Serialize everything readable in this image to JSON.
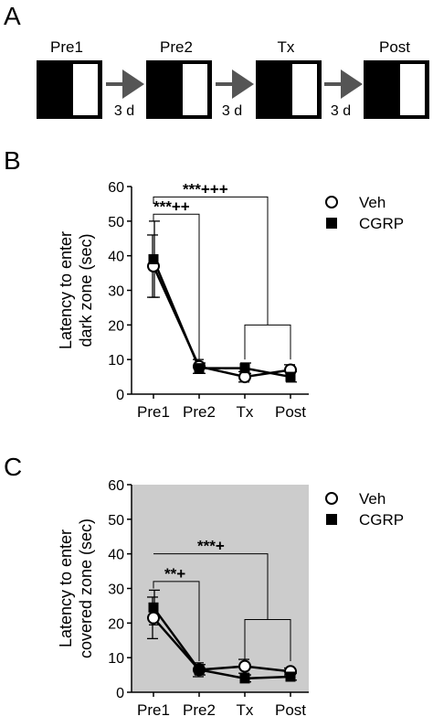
{
  "panel_a": {
    "letter": "A",
    "stages": [
      "Pre1",
      "Pre2",
      "Tx",
      "Post"
    ],
    "intervals": [
      "3 d",
      "3 d",
      "3 d"
    ]
  },
  "panel_b": {
    "letter": "B"
  },
  "panel_c": {
    "letter": "C"
  },
  "chart_data": [
    {
      "type": "line",
      "panel": "B",
      "background": "#ffffff",
      "categories": [
        "Pre1",
        "Pre2",
        "Tx",
        "Post"
      ],
      "ylabel_lines": [
        "Latency to enter",
        "dark zone (sec)"
      ],
      "ylim": [
        0,
        60
      ],
      "yticks": [
        0,
        10,
        20,
        30,
        40,
        50,
        60
      ],
      "series": [
        {
          "name": "Veh",
          "marker": "open-circle",
          "values": [
            37,
            8,
            5,
            7
          ],
          "errors": [
            9,
            2,
            1.5,
            1.5
          ]
        },
        {
          "name": "CGRP",
          "marker": "filled-square",
          "values": [
            39,
            7.5,
            7.5,
            5
          ],
          "errors": [
            11,
            1.5,
            1.5,
            1.5
          ]
        }
      ],
      "legend": [
        "Veh",
        "CGRP"
      ],
      "annotations": [
        "***++",
        "***+++"
      ]
    },
    {
      "type": "line",
      "panel": "C",
      "background": "#cccccc",
      "categories": [
        "Pre1",
        "Pre2",
        "Tx",
        "Post"
      ],
      "ylabel_lines": [
        "Latency to enter",
        "covered zone (sec)"
      ],
      "ylim": [
        0,
        60
      ],
      "yticks": [
        0,
        10,
        20,
        30,
        40,
        50,
        60
      ],
      "series": [
        {
          "name": "Veh",
          "marker": "open-circle",
          "values": [
            21.5,
            6.5,
            7.5,
            6
          ],
          "errors": [
            6,
            2,
            2,
            1
          ]
        },
        {
          "name": "CGRP",
          "marker": "filled-square",
          "values": [
            24.5,
            6.5,
            4,
            4.5
          ],
          "errors": [
            5,
            1.5,
            1,
            1
          ]
        }
      ],
      "legend": [
        "Veh",
        "CGRP"
      ],
      "annotations": [
        "**+",
        "***+"
      ]
    }
  ]
}
